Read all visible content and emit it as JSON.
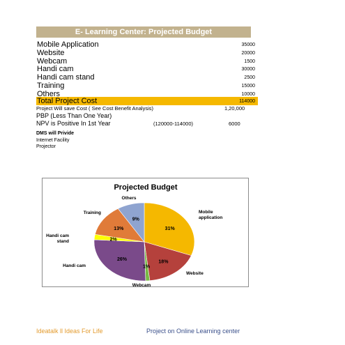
{
  "header": {
    "title": "E- Learning Center: Projected Budget"
  },
  "budget": {
    "items": [
      {
        "label": "Mobile Application",
        "value": "35000"
      },
      {
        "label": "Website",
        "value": "20000"
      },
      {
        "label": "Webcam",
        "value": "1500"
      },
      {
        "label": "Handi cam",
        "value": "30000"
      },
      {
        "label": "Handi cam stand",
        "value": "2500"
      },
      {
        "label": "Training",
        "value": "15000"
      },
      {
        "label": "Others",
        "value": "10000"
      }
    ],
    "total": {
      "label": "Total Project Cost",
      "value": "114000"
    }
  },
  "analysis": {
    "save_label": "Project Will save Cost ( See Cost Benefit Analysis)",
    "save_value": "1,20,000",
    "pbp_label": "PBP (Less Than One Year)",
    "npv_label": "NPV is Positive In 1st Year",
    "npv_calc": "(120000-114000)",
    "npv_value": "6000"
  },
  "dms": {
    "heading": "DMS will Privide",
    "items": [
      "Internet Facility",
      "Projector"
    ]
  },
  "chart_data": {
    "type": "pie",
    "title": "Projected Budget",
    "slices": [
      {
        "name": "Mobile application",
        "value": 35000,
        "percent": "31%",
        "color": "#f5b800"
      },
      {
        "name": "Website",
        "value": 20000,
        "percent": "18%",
        "color": "#b5413c"
      },
      {
        "name": "Webcam",
        "value": 1500,
        "percent": "1%",
        "color": "#78b944"
      },
      {
        "name": "Handi cam",
        "value": 30000,
        "percent": "26%",
        "color": "#7a4a8a"
      },
      {
        "name": "Handi cam stand",
        "value": 2500,
        "percent": "2%",
        "color": "#ffff00"
      },
      {
        "name": "Training",
        "value": 15000,
        "percent": "13%",
        "color": "#e07b39"
      },
      {
        "name": "Others",
        "value": 10000,
        "percent": "9%",
        "color": "#8fa4d0"
      }
    ]
  },
  "footer": {
    "left": "Ideatalk ll Ideas For Life",
    "right": "Project on Online Learning center"
  }
}
